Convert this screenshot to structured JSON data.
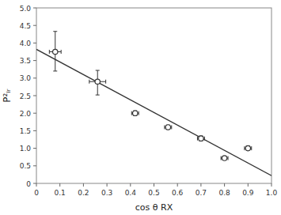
{
  "chart_data": {
    "type": "scatter",
    "xlabel": "cos θ RX",
    "ylabel": "P²ᵢᵣ",
    "xlim": [
      0.0,
      1.0
    ],
    "ylim": [
      0.0,
      5.0
    ],
    "xticks": [
      0,
      0.1,
      0.2,
      0.3,
      0.4,
      0.5,
      0.6,
      0.7,
      0.8,
      0.9,
      {
        "value": 1.0,
        "label": "1.0"
      }
    ],
    "yticks": [
      0,
      0.5,
      {
        "value": 1.0,
        "label": "1.0"
      },
      1.5,
      {
        "value": 2.0,
        "label": "2.0"
      },
      2.5,
      {
        "value": 3.0,
        "label": "3.0"
      },
      3.5,
      {
        "value": 4.0,
        "label": "4.0"
      },
      4.5,
      {
        "value": 5.0,
        "label": "5.0"
      }
    ],
    "series": [
      {
        "type": "scatter",
        "marker": "circle",
        "color": "#333333",
        "x": [
          0.08,
          0.26,
          0.42,
          0.56,
          0.7,
          0.8,
          0.9
        ],
        "values": [
          3.75,
          2.9,
          2.0,
          1.6,
          1.28,
          0.72,
          1.0
        ],
        "xerr": [
          0.025,
          0.035,
          0.015,
          0.015,
          0.015,
          0.015,
          0.015
        ],
        "yerr_low": [
          0.55,
          0.38,
          0.07,
          0.06,
          0.07,
          0.04,
          0.05
        ],
        "yerr_high": [
          0.58,
          0.32,
          0.07,
          0.06,
          0.07,
          0.04,
          0.07
        ]
      },
      {
        "type": "line",
        "color": "#333333",
        "x": [
          0.0,
          1.0
        ],
        "values": [
          3.82,
          0.22
        ]
      }
    ]
  }
}
